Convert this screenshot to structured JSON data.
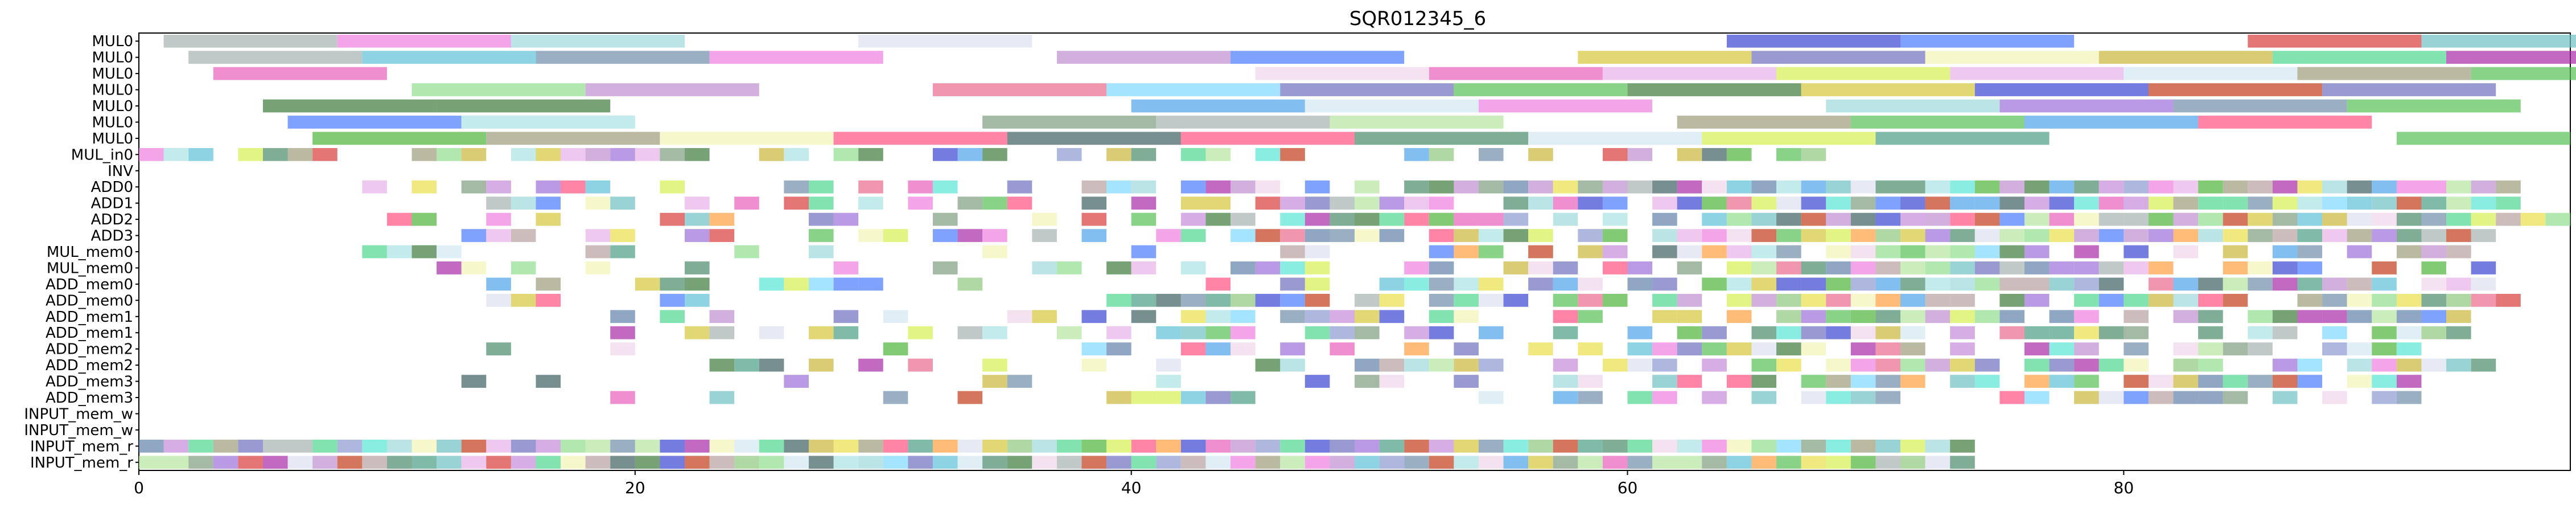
{
  "chart_data": {
    "type": "gantt",
    "title": "SQR012345_6",
    "xlim": [
      0,
      98
    ],
    "x_ticks": [
      0,
      20,
      40,
      60,
      80
    ],
    "x_tick_labels": [
      "0",
      "20",
      "40",
      "60",
      "80"
    ],
    "rows": [
      "MUL0",
      "MUL0",
      "MUL0",
      "MUL0",
      "MUL0",
      "MUL0",
      "MUL0",
      "MUL_in0",
      "INV",
      "ADD0",
      "ADD1",
      "ADD2",
      "ADD3",
      "MUL_mem0",
      "MUL_mem0",
      "ADD_mem0",
      "ADD_mem0",
      "ADD_mem1",
      "ADD_mem1",
      "ADD_mem2",
      "ADD_mem2",
      "ADD_mem3",
      "ADD_mem3",
      "INPUT_mem_w",
      "INPUT_mem_w",
      "INPUT_mem_r",
      "INPUT_mem_r"
    ],
    "palette": [
      "#9ed8db",
      "#4fb33a",
      "#d93b3b",
      "#3f5f5f",
      "#d3e8f2",
      "#c9b63a",
      "#6fc0c4",
      "#bd8fd0",
      "#8b9ad1",
      "#a6b0b0",
      "#e95fba",
      "#57c057",
      "#d6f04f",
      "#6081a8",
      "#3945d1",
      "#e9e04a",
      "#a9e3e3",
      "#9d6fd9",
      "#7f9d7f",
      "#e96a8c",
      "#dde0f0",
      "#4a8a6a",
      "#4a9e84",
      "#5ec1d8",
      "#4a7bff",
      "#c48ad9",
      "#f07fe0",
      "#9d9d7a",
      "#ff5080",
      "#d6c63a",
      "#6f8ea8",
      "#f2f4b5",
      "#b79fa0",
      "#a82ba8",
      "#8fde8f",
      "#efd6ea",
      "#8fc77e",
      "#4da3e8",
      "#4fd78f",
      "#c23a1a",
      "#3c7a3c",
      "#ffa040",
      "#7fd9ff",
      "#6f6fc0",
      "#57e6d6",
      "#e8b0e8",
      "#b3e59e"
    ],
    "seed": 123456
  }
}
